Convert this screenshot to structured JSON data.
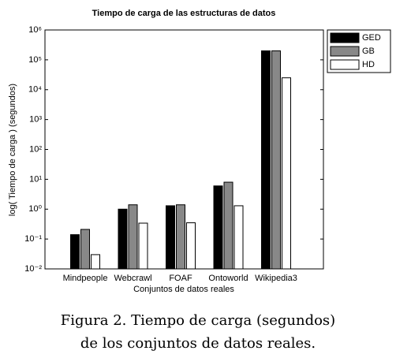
{
  "chart_data": {
    "type": "bar",
    "title": "Tiempo de carga de las estructuras de datos",
    "x_label": "Conjuntos de datos reales",
    "y_label": "log( Tiempo de carga ) (segundos)",
    "categories": [
      "Mindpeople",
      "Webcrawl",
      "FOAF",
      "Ontoworld",
      "Wikipedia3"
    ],
    "series": [
      {
        "name": "GED",
        "color": "#000000",
        "values": [
          0.14,
          1.0,
          1.3,
          6,
          200000
        ]
      },
      {
        "name": "GB",
        "color": "#888888",
        "values": [
          0.21,
          1.4,
          1.4,
          8,
          200000
        ]
      },
      {
        "name": "HD",
        "color": "#ffffff",
        "values": [
          0.03,
          0.34,
          0.35,
          1.3,
          25000
        ]
      }
    ],
    "log_scale": true,
    "grid": false,
    "legend": "upper right",
    "ylim": [
      0.01,
      1000000
    ],
    "yticks": [
      {
        "value": 0.01,
        "label": "10⁻²"
      },
      {
        "value": 0.1,
        "label": "10⁻¹"
      },
      {
        "value": 1,
        "label": "10⁰"
      },
      {
        "value": 10,
        "label": "10¹"
      },
      {
        "value": 100,
        "label": "10²"
      },
      {
        "value": 1000,
        "label": "10³"
      },
      {
        "value": 10000,
        "label": "10⁴"
      },
      {
        "value": 100000,
        "label": "10⁵"
      },
      {
        "value": 1000000,
        "label": "10⁶"
      }
    ],
    "caption": [
      "Figura 2. Tiempo de carga (segundos)",
      "de los conjuntos de datos reales."
    ]
  }
}
